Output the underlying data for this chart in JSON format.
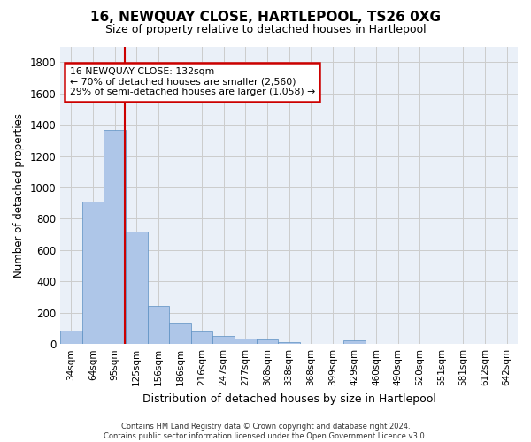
{
  "title": "16, NEWQUAY CLOSE, HARTLEPOOL, TS26 0XG",
  "subtitle": "Size of property relative to detached houses in Hartlepool",
  "xlabel": "Distribution of detached houses by size in Hartlepool",
  "ylabel": "Number of detached properties",
  "bar_color": "#aec6e8",
  "bar_edge_color": "#5a8fc2",
  "background_color": "#ffffff",
  "axes_bg_color": "#eaf0f8",
  "grid_color": "#cccccc",
  "bin_labels": [
    "34sqm",
    "64sqm",
    "95sqm",
    "125sqm",
    "156sqm",
    "186sqm",
    "216sqm",
    "247sqm",
    "277sqm",
    "308sqm",
    "338sqm",
    "368sqm",
    "399sqm",
    "429sqm",
    "460sqm",
    "490sqm",
    "520sqm",
    "551sqm",
    "581sqm",
    "612sqm",
    "642sqm"
  ],
  "bar_values": [
    85,
    910,
    1365,
    715,
    245,
    135,
    80,
    52,
    35,
    28,
    15,
    0,
    0,
    22,
    0,
    0,
    0,
    0,
    0,
    0,
    0
  ],
  "ylim": [
    0,
    1900
  ],
  "yticks": [
    0,
    200,
    400,
    600,
    800,
    1000,
    1200,
    1400,
    1600,
    1800
  ],
  "vline_x": 2.45,
  "vline_color": "#cc0000",
  "annotation_title": "16 NEWQUAY CLOSE: 132sqm",
  "annotation_line1": "← 70% of detached houses are smaller (2,560)",
  "annotation_line2": "29% of semi-detached houses are larger (1,058) →",
  "annotation_box_color": "#cc0000",
  "footer_line1": "Contains HM Land Registry data © Crown copyright and database right 2024.",
  "footer_line2": "Contains public sector information licensed under the Open Government Licence v3.0."
}
